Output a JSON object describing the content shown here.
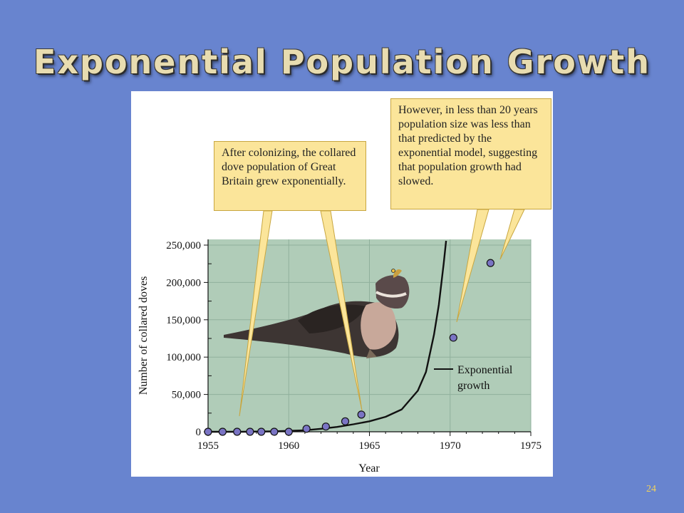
{
  "slide": {
    "title": "Exponential Population Growth",
    "page_number": "24"
  },
  "callouts": {
    "left": "After colonizing, the collared dove population of Great Britain grew exponentially.",
    "right": "However, in less than 20 years population size was less than that predicted by the exponential model, suggesting that population growth had slowed."
  },
  "colors": {
    "background": "#6884cf",
    "plot_area": "#b0ccb8",
    "grid": "#8fb09c",
    "point_fill": "#7a74c4",
    "callout": "#fbe59a",
    "title": "#e8dcb0"
  },
  "icons": {
    "bird": "collared-dove-illustration"
  },
  "chart_data": {
    "type": "scatter",
    "xlabel": "Year",
    "ylabel": "Number of collared doves",
    "xlim": [
      1955,
      1975
    ],
    "ylim": [
      0,
      260000
    ],
    "xticks": [
      1955,
      1960,
      1965,
      1970,
      1975
    ],
    "xtick_labels": [
      "1955",
      "1960",
      "1965",
      "1970",
      "1975"
    ],
    "yticks": [
      0,
      50000,
      100000,
      150000,
      200000,
      250000
    ],
    "ytick_labels": [
      "0",
      "50,000",
      "100,000",
      "150,000",
      "200,000",
      "250,000"
    ],
    "grid": true,
    "series": [
      {
        "kind": "observed",
        "x": [
          1955,
          1955.9,
          1956.8,
          1957.6,
          1958.3,
          1959.1,
          1960.0,
          1961.1,
          1962.3,
          1963.5,
          1964.5,
          1970.2,
          1972.5
        ],
        "y": [
          0,
          0,
          0,
          0,
          0,
          0,
          0,
          4000,
          7000,
          14000,
          23000,
          126000,
          226000
        ]
      },
      {
        "name": "Exponential growth",
        "kind": "model",
        "x": [
          1955,
          1957,
          1959,
          1961,
          1962,
          1963,
          1964,
          1965,
          1966,
          1967,
          1968,
          1968.5,
          1969,
          1969.3,
          1969.6,
          1969.75
        ],
        "y": [
          0,
          0,
          500,
          2000,
          4000,
          6500,
          10000,
          14000,
          20000,
          30000,
          55000,
          80000,
          130000,
          170000,
          225000,
          260000
        ]
      }
    ],
    "legend_label": "Exponential growth",
    "legend_placement": "right"
  }
}
